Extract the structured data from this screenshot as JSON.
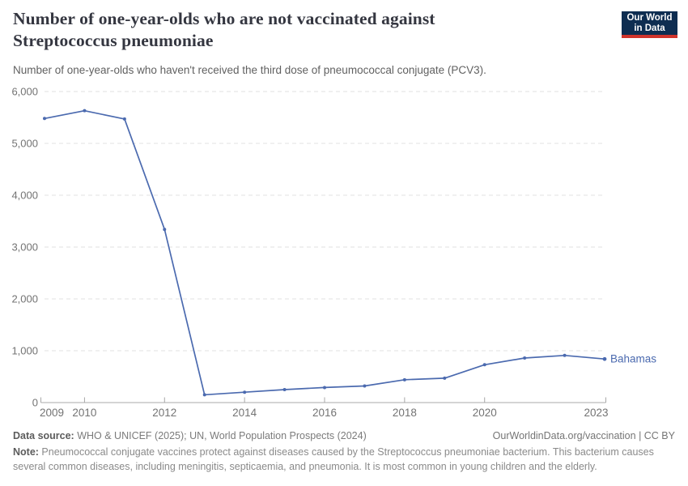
{
  "header": {
    "title_line1": "Number of one-year-olds who are not vaccinated against",
    "title_line2": "Streptococcus pneumoniae",
    "subtitle": "Number of one-year-olds who haven't received the third dose of pneumococcal conjugate (PCV3).",
    "logo": {
      "line1": "Our World",
      "line2": "in Data",
      "bg_color": "#0E2D51",
      "accent_color": "#D0342C"
    }
  },
  "chart_data": {
    "type": "line",
    "title": "Number of one-year-olds who are not vaccinated against Streptococcus pneumoniae",
    "x": [
      2009,
      2010,
      2011,
      2012,
      2013,
      2014,
      2015,
      2016,
      2017,
      2018,
      2019,
      2020,
      2021,
      2022,
      2023
    ],
    "series": [
      {
        "name": "Bahamas",
        "color": "#4B6AAF",
        "values": [
          5480,
          5630,
          5470,
          3340,
          150,
          200,
          250,
          290,
          320,
          440,
          470,
          730,
          860,
          910,
          840
        ]
      }
    ],
    "end_label": "Bahamas",
    "x_ticks": [
      2009,
      2010,
      2012,
      2014,
      2016,
      2018,
      2020,
      2023
    ],
    "y_ticks": [
      0,
      1000,
      2000,
      3000,
      4000,
      5000,
      6000
    ],
    "xlim": [
      2009,
      2023
    ],
    "ylim": [
      0,
      6000
    ],
    "grid": "horizontal-dashed",
    "legend_position": "end-of-line",
    "colors": {
      "grid": "#e2e2e2",
      "axis": "#a8a8a8",
      "tick_label": "#737373"
    }
  },
  "footer": {
    "data_source_label": "Data source:",
    "data_source_text": " WHO & UNICEF (2025); UN, World Population Prospects (2024)",
    "link": "OurWorldinData.org/vaccination | CC BY",
    "note_label": "Note:",
    "note_text": " Pneumococcal conjugate vaccines protect against diseases caused by the Streptococcus pneumoniae bacterium. This bacterium causes several common diseases, including meningitis, septicaemia, and pneumonia. It is most common in young children and the elderly."
  }
}
